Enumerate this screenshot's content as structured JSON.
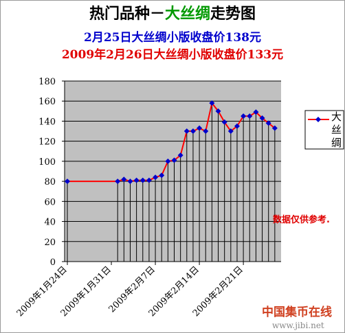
{
  "chart_data": {
    "type": "line",
    "title_parts": [
      "热门品种－",
      "大丝绸",
      "走势图"
    ],
    "subtitles": [
      "2月25日大丝绸小版收盘价138元",
      "2009年2月26日大丝绸小版收盘价133元"
    ],
    "annotation": "数据仅供参考.",
    "watermark": [
      "中国集币在线",
      "www.jibi.net"
    ],
    "x": [
      "2009-01-24",
      "2009-02-01",
      "2009-02-02",
      "2009-02-03",
      "2009-02-04",
      "2009-02-05",
      "2009-02-06",
      "2009-02-07",
      "2009-02-08",
      "2009-02-09",
      "2009-02-10",
      "2009-02-11",
      "2009-02-12",
      "2009-02-13",
      "2009-02-14",
      "2009-02-15",
      "2009-02-16",
      "2009-02-17",
      "2009-02-18",
      "2009-02-19",
      "2009-02-20",
      "2009-02-21",
      "2009-02-22",
      "2009-02-23",
      "2009-02-24",
      "2009-02-25",
      "2009-02-26"
    ],
    "series": [
      {
        "name": "大丝绸",
        "color": "#ff0000",
        "marker_color": "#0000cc",
        "values": [
          80,
          80,
          82,
          80,
          81,
          81,
          81,
          84,
          86,
          100,
          101,
          106,
          130,
          130,
          133,
          130,
          158,
          150,
          139,
          130,
          135,
          145,
          145,
          149,
          143,
          138,
          133
        ]
      }
    ],
    "xlim": [
      "2009-01-24",
      "2009-02-27"
    ],
    "xticks": [
      {
        "value": "2009-01-24",
        "label": "2009年1月24日"
      },
      {
        "value": "2009-01-31",
        "label": "2009年1月31日"
      },
      {
        "value": "2009-02-07",
        "label": "2009年2月7日"
      },
      {
        "value": "2009-02-14",
        "label": "2009年2月14日"
      },
      {
        "value": "2009-02-21",
        "label": "2009年2月21日"
      }
    ],
    "ylim": [
      0,
      180
    ],
    "yticks": [
      0,
      20,
      40,
      60,
      80,
      100,
      120,
      140,
      160,
      180
    ],
    "grid": true,
    "drop_lines": true
  }
}
